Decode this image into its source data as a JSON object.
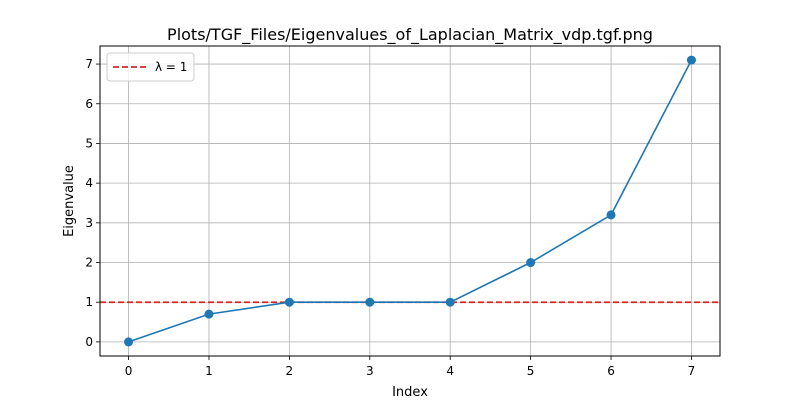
{
  "chart_data": {
    "type": "line",
    "title": "Plots/TGF_Files/Eigenvalues_of_Laplacian_Matrix_vdp.tgf.png",
    "xlabel": "Index",
    "ylabel": "Eigenvalue",
    "x": [
      0,
      1,
      2,
      3,
      4,
      5,
      6,
      7
    ],
    "series": [
      {
        "values": [
          0.0,
          0.7,
          1.0,
          1.0,
          1.0,
          2.0,
          3.2,
          7.1
        ],
        "color": "#1f77b4",
        "marker": "circle"
      }
    ],
    "reference_line": {
      "y": 1,
      "label": "λ = 1",
      "color": "#d62728",
      "style": "dashed"
    },
    "xticks": [
      "0",
      "1",
      "2",
      "3",
      "4",
      "5",
      "6",
      "7"
    ],
    "yticks": [
      "0",
      "1",
      "2",
      "3",
      "4",
      "5",
      "6",
      "7"
    ],
    "xlim": [
      -0.355,
      7.355
    ],
    "ylim": [
      -0.355,
      7.455
    ],
    "grid": true,
    "legend_position": "top-left"
  }
}
